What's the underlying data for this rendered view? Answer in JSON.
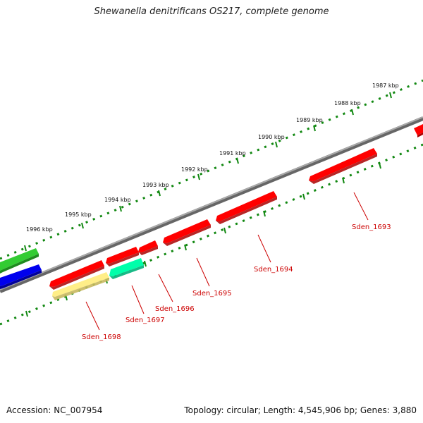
{
  "title": "Shewanella denitrificans OS217, complete genome",
  "footer": {
    "accession": "Accession: NC_007954",
    "summary": "Topology: circular; Length: 4,545,906 bp; Genes: 3,880"
  },
  "ticks": [
    "1987 kbp",
    "1988 kbp",
    "1989 kbp",
    "1990 kbp",
    "1991 kbp",
    "1992 kbp",
    "1993 kbp",
    "1994 kbp",
    "1995 kbp",
    "1996 kbp"
  ],
  "genes": [
    {
      "label": "Sden_1693",
      "color": "#ff0000"
    },
    {
      "label": "Sden_1694",
      "color": "#ff0000"
    },
    {
      "label": "Sden_1695",
      "color": "#ff0000"
    },
    {
      "label": "Sden_1696",
      "color": "#ff0000"
    },
    {
      "label": "Sden_1697",
      "color": "#00ffaa"
    },
    {
      "label": "Sden_1698",
      "color": "#ffee88"
    }
  ],
  "colors": {
    "backbone": "#888888",
    "tick": "#118811",
    "gene_label": "#cc0000",
    "outer_green": "#33cc33",
    "outer_blue": "#0000ee"
  }
}
